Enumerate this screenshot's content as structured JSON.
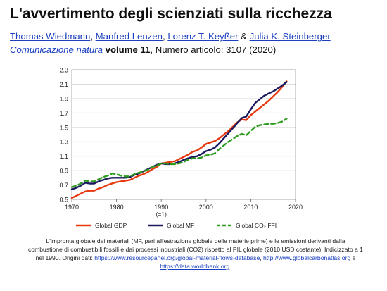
{
  "slide": {
    "title": "L'avvertimento degli scienziati sulla ricchezza",
    "authors": [
      "Thomas Wiedmann",
      "Manfred Lenzen",
      "Lorenz T. Keyßer",
      "Julia K. Steinberger"
    ],
    "author_sep_1": ", ",
    "author_sep_2": ", ",
    "author_sep_3": " & ",
    "journal": "Comunicazione natura",
    "volume": "volume 11",
    "article_info": ", Numero articolo: 3107 (2020)",
    "caption_text": "L'impronta globale dei materiali (MF, pari all'estrazione globale delle materie prime) e le emissioni derivanti dalla combustione di combustibili fossili e dai processi industriali (CO2) rispetto al PIL globale (2010 USD costante). Indicizzato a 1 nel 1990. Origini dati: ",
    "link_1": "https://www.resourcepanel.org/global-material-flows-database",
    "link_sep_1": ", ",
    "link_2": "http://www.globalcarbonatlas.org",
    "link_sep_2": " e ",
    "link_3": "https://data.worldbank.org",
    "caption_end": "."
  },
  "chart_data": {
    "type": "line",
    "xlim": [
      1970,
      2020
    ],
    "ylim": [
      0.5,
      2.3
    ],
    "x_ticks": [
      1970,
      1980,
      1990,
      2000,
      2010,
      2020
    ],
    "x_tick_labels": [
      "1970",
      "1980",
      "1990",
      "2000",
      "2010",
      "2020"
    ],
    "x_sub_label": "(=1)",
    "y_ticks": [
      0.5,
      0.7,
      0.9,
      1.1,
      1.3,
      1.5,
      1.7,
      1.9,
      2.1,
      2.3
    ],
    "y_tick_labels": [
      "0.5",
      "0.7",
      "0.9",
      "1.1",
      "1.3",
      "1.5",
      "1.7",
      "1.9",
      "2.1",
      "2.3"
    ],
    "grid": "horizontal",
    "legend_position": "bottom",
    "colors": {
      "gdp": "#e8380d",
      "mf": "#1b1a5e",
      "co2": "#2e9c1f"
    },
    "series": [
      {
        "name": "Global GDP",
        "key": "gdp",
        "style": "solid",
        "x": [
          1970,
          1971,
          1972,
          1973,
          1974,
          1975,
          1976,
          1977,
          1978,
          1979,
          1980,
          1981,
          1982,
          1983,
          1984,
          1985,
          1986,
          1987,
          1988,
          1989,
          1990,
          1991,
          1992,
          1993,
          1994,
          1995,
          1996,
          1997,
          1998,
          1999,
          2000,
          2001,
          2002,
          2003,
          2004,
          2005,
          2006,
          2007,
          2008,
          2009,
          2010,
          2011,
          2012,
          2013,
          2014,
          2015,
          2016,
          2017,
          2018
        ],
        "y": [
          0.52,
          0.55,
          0.58,
          0.61,
          0.62,
          0.62,
          0.65,
          0.67,
          0.7,
          0.72,
          0.74,
          0.75,
          0.76,
          0.77,
          0.8,
          0.83,
          0.85,
          0.88,
          0.92,
          0.95,
          1.0,
          1.01,
          1.02,
          1.03,
          1.06,
          1.09,
          1.12,
          1.16,
          1.18,
          1.22,
          1.27,
          1.29,
          1.31,
          1.35,
          1.4,
          1.45,
          1.51,
          1.57,
          1.61,
          1.6,
          1.67,
          1.72,
          1.77,
          1.82,
          1.87,
          1.93,
          1.99,
          2.06,
          2.14
        ]
      },
      {
        "name": "Global MF",
        "key": "mf",
        "style": "solid",
        "x": [
          1970,
          1971,
          1972,
          1973,
          1974,
          1975,
          1976,
          1977,
          1978,
          1979,
          1980,
          1981,
          1982,
          1983,
          1984,
          1985,
          1986,
          1987,
          1988,
          1989,
          1990,
          1991,
          1992,
          1993,
          1994,
          1995,
          1996,
          1997,
          1998,
          1999,
          2000,
          2001,
          2002,
          2003,
          2004,
          2005,
          2006,
          2007,
          2008,
          2009,
          2010,
          2011,
          2012,
          2013,
          2014,
          2015,
          2016,
          2017,
          2018
        ],
        "y": [
          0.64,
          0.66,
          0.69,
          0.73,
          0.72,
          0.72,
          0.75,
          0.77,
          0.79,
          0.8,
          0.8,
          0.8,
          0.8,
          0.81,
          0.84,
          0.86,
          0.89,
          0.92,
          0.95,
          0.98,
          1.0,
          0.99,
          0.99,
          1.0,
          1.02,
          1.05,
          1.07,
          1.09,
          1.1,
          1.13,
          1.17,
          1.19,
          1.22,
          1.28,
          1.35,
          1.42,
          1.49,
          1.56,
          1.63,
          1.65,
          1.75,
          1.84,
          1.89,
          1.94,
          1.97,
          2.0,
          2.04,
          2.08,
          2.13
        ]
      },
      {
        "name": "Global CO₂ FFI",
        "key": "co2",
        "style": "dashed",
        "x": [
          1970,
          1971,
          1972,
          1973,
          1974,
          1975,
          1976,
          1977,
          1978,
          1979,
          1980,
          1981,
          1982,
          1983,
          1984,
          1985,
          1986,
          1987,
          1988,
          1989,
          1990,
          1991,
          1992,
          1993,
          1994,
          1995,
          1996,
          1997,
          1998,
          1999,
          2000,
          2001,
          2002,
          2003,
          2004,
          2005,
          2006,
          2007,
          2008,
          2009,
          2010,
          2011,
          2012,
          2013,
          2014,
          2015,
          2016,
          2017,
          2018
        ],
        "y": [
          0.67,
          0.69,
          0.72,
          0.76,
          0.75,
          0.75,
          0.78,
          0.81,
          0.83,
          0.86,
          0.85,
          0.83,
          0.82,
          0.82,
          0.85,
          0.87,
          0.89,
          0.91,
          0.95,
          0.97,
          1.0,
          1.0,
          0.99,
          0.99,
          1.0,
          1.02,
          1.05,
          1.07,
          1.07,
          1.08,
          1.11,
          1.12,
          1.14,
          1.2,
          1.25,
          1.3,
          1.34,
          1.38,
          1.41,
          1.39,
          1.45,
          1.51,
          1.53,
          1.54,
          1.55,
          1.55,
          1.56,
          1.58,
          1.62
        ]
      }
    ]
  }
}
